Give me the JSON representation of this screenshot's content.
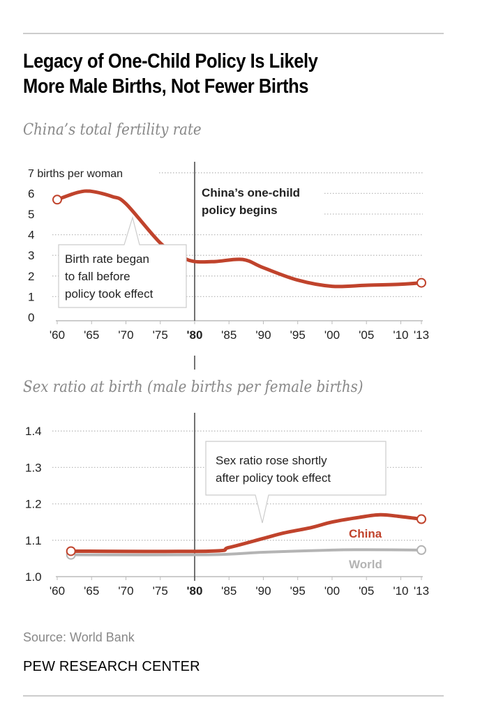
{
  "title": "Legacy of One-Child Policy Is Likely More Male Births, Not Fewer Births",
  "title_lines": [
    "Legacy of One-Child Policy Is Likely",
    "More Male Births, Not Fewer Births"
  ],
  "source": "Source: World Bank",
  "brand": "PEW RESEARCH CENTER",
  "colors": {
    "china": "#c0432c",
    "world": "#b4b4b4",
    "grid": "#bbbbbb"
  },
  "chart_data": [
    {
      "type": "line",
      "title": "China’s total fertility rate",
      "ylabel": "births per woman",
      "ylim": [
        0,
        7
      ],
      "xlim": [
        1960,
        2013
      ],
      "yticks": [
        "0",
        "1",
        "2",
        "3",
        "4",
        "5",
        "6",
        "7 births per woman"
      ],
      "xticks": [
        "'60",
        "'65",
        "'70",
        "'75",
        "'80",
        "'85",
        "'90",
        "'95",
        "'00",
        "'05",
        "'10",
        "'13"
      ],
      "series": [
        {
          "x": [
            1960,
            1963,
            1965,
            1968,
            1970,
            1975,
            1978,
            1980,
            1983,
            1987,
            1990,
            1995,
            2000,
            2005,
            2010,
            2013
          ],
          "y": [
            5.7,
            6.05,
            6.1,
            5.85,
            5.5,
            3.6,
            2.95,
            2.7,
            2.7,
            2.8,
            2.4,
            1.8,
            1.5,
            1.55,
            1.6,
            1.67
          ]
        }
      ],
      "annotations": [
        {
          "text": [
            "China’s one-child",
            "policy begins"
          ]
        },
        {
          "text": [
            "Birth rate began",
            "to fall before",
            "policy took effect"
          ]
        }
      ],
      "grid": true
    },
    {
      "type": "line",
      "title": "Sex ratio at birth (male births per female births)",
      "ylim": [
        1.0,
        1.4
      ],
      "xlim": [
        1960,
        2013
      ],
      "yticks": [
        "1.0",
        "1.1",
        "1.2",
        "1.3",
        "1.4"
      ],
      "xticks": [
        "'60",
        "'65",
        "'70",
        "'75",
        "'80",
        "'85",
        "'90",
        "'95",
        "'00",
        "'05",
        "'10",
        "'13"
      ],
      "series": [
        {
          "name": "China",
          "x": [
            1962,
            1982,
            1985,
            1990,
            1993,
            1997,
            2000,
            2004,
            2007,
            2010,
            2013
          ],
          "y": [
            1.07,
            1.07,
            1.08,
            1.105,
            1.12,
            1.135,
            1.15,
            1.163,
            1.17,
            1.165,
            1.158
          ]
        },
        {
          "name": "World",
          "x": [
            1962,
            1982,
            1990,
            2000,
            2005,
            2013
          ],
          "y": [
            1.06,
            1.06,
            1.067,
            1.073,
            1.074,
            1.073
          ]
        }
      ],
      "annotations": [
        {
          "text": [
            "Sex ratio rose shortly",
            "after policy took effect"
          ]
        }
      ],
      "grid": true
    }
  ]
}
